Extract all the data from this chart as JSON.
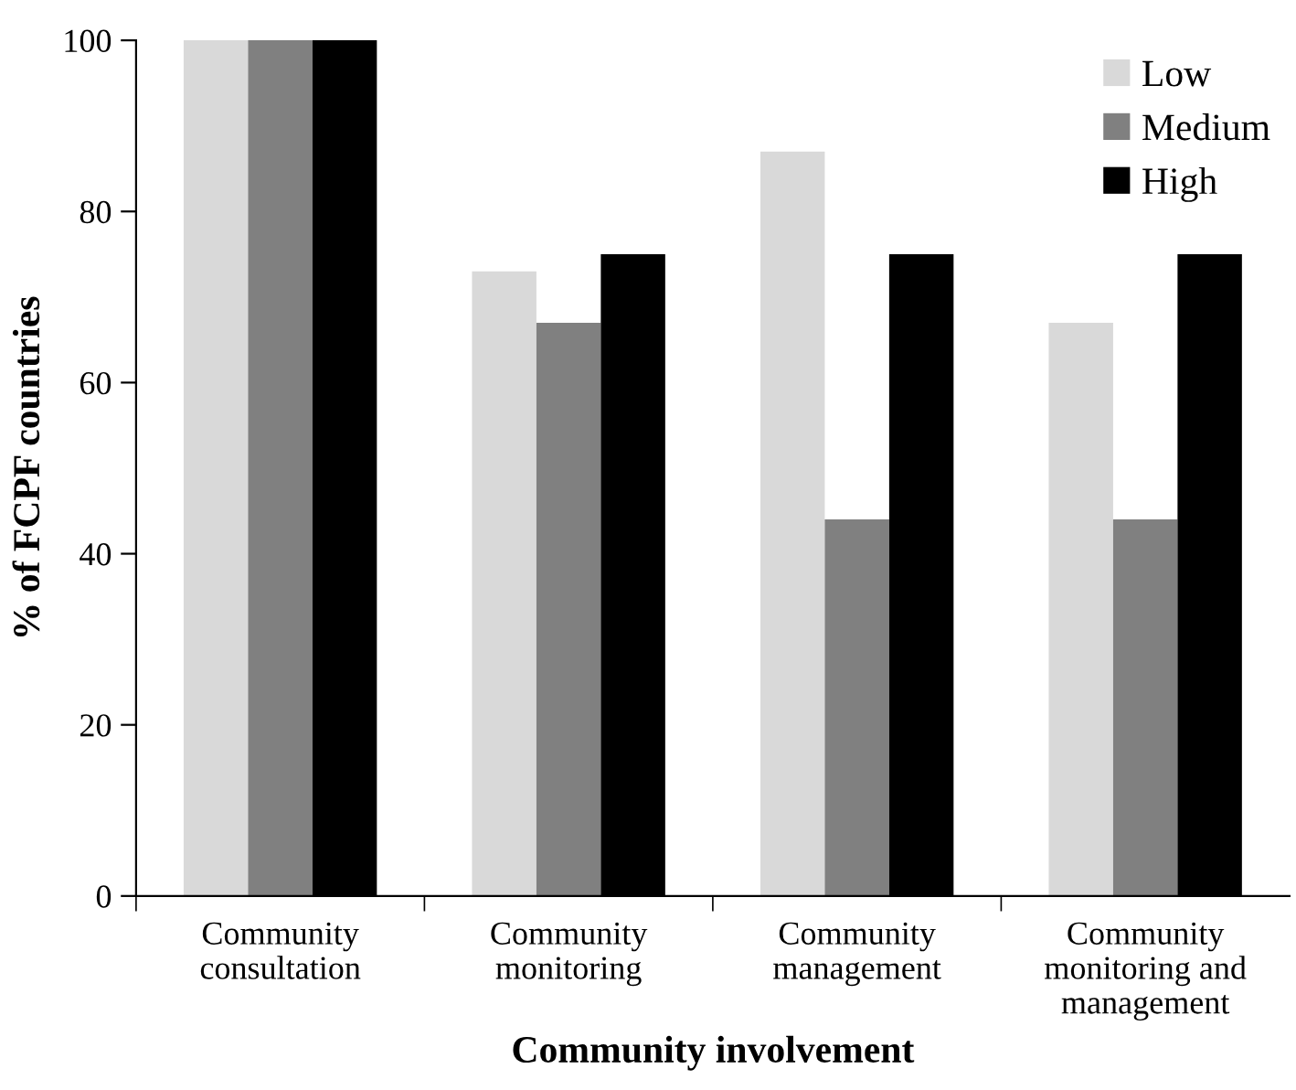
{
  "chart_data": {
    "type": "bar",
    "xlabel": "Community involvement",
    "ylabel": "% of FCPF countries",
    "categories": [
      "Community\nconsultation",
      "Community\nmonitoring",
      "Community\nmanagement",
      "Community\nmonitoring and\nmanagement"
    ],
    "series": [
      {
        "name": "Low",
        "color": "#d9d9d9",
        "values": [
          100,
          73,
          87,
          67
        ]
      },
      {
        "name": "Medium",
        "color": "#808080",
        "values": [
          100,
          67,
          44,
          44
        ]
      },
      {
        "name": "High",
        "color": "#000000",
        "values": [
          100,
          75,
          75,
          75
        ]
      }
    ],
    "ylim": [
      0,
      100
    ],
    "yticks": [
      0,
      20,
      40,
      60,
      80,
      100
    ],
    "grid": false,
    "legend": "top right"
  }
}
